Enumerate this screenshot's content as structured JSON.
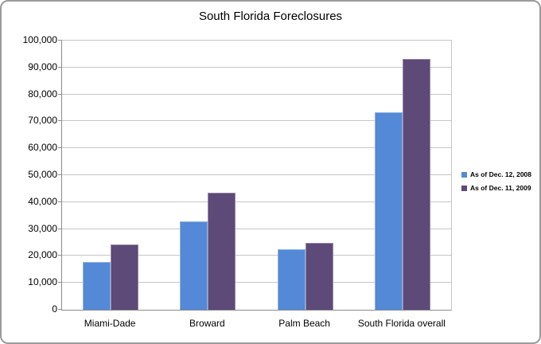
{
  "chart": {
    "title": "South Florida Foreclosures",
    "colors": {
      "series_2008": "#5389D6",
      "series_2009": "#5D4A78",
      "gridline": "#C6C6C6",
      "axis": "#8C8C8C",
      "chart_border": "#9B9B9B",
      "background": "#FFFFFF"
    }
  },
  "chart_data": {
    "type": "bar",
    "title": "South Florida Foreclosures",
    "categories": [
      "Miami-Dade",
      "Broward",
      "Palm Beach",
      "South Florida overall"
    ],
    "series": [
      {
        "name": "As of Dec. 12, 2008",
        "color": "#5389D6",
        "values": [
          17800,
          32900,
          22500,
          73500
        ]
      },
      {
        "name": "As of Dec. 11, 2009",
        "color": "#5D4A78",
        "values": [
          24300,
          43500,
          25000,
          93200
        ]
      }
    ],
    "xlabel": "",
    "ylabel": "",
    "ylim": [
      0,
      100000
    ],
    "ytick_step": 10000,
    "ytick_labels": [
      "0",
      "10,000",
      "20,000",
      "30,000",
      "40,000",
      "50,000",
      "60,000",
      "70,000",
      "80,000",
      "90,000",
      "100,000"
    ],
    "grid": true,
    "legend_position": "right"
  }
}
